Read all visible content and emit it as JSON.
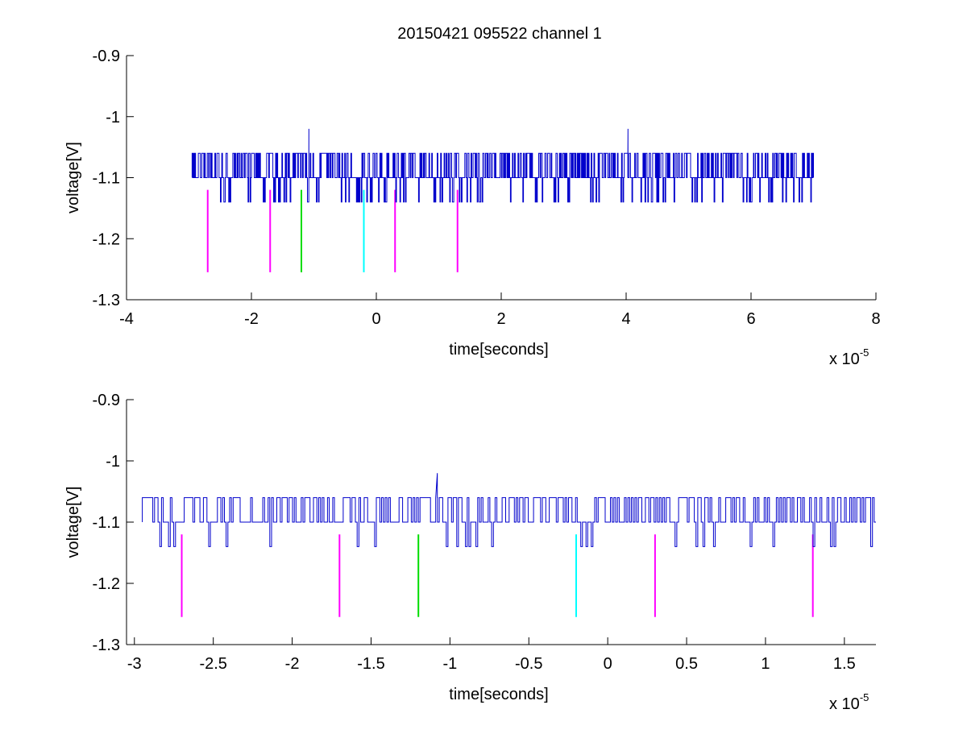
{
  "chart_data": [
    {
      "type": "line",
      "title": "20150421 095522 channel 1",
      "xlabel": "time[seconds]",
      "ylabel": "voltage[V]",
      "x_multiplier_base": "x 10",
      "x_multiplier_exp": "-5",
      "xlim": [
        -4,
        8
      ],
      "ylim": [
        -1.3,
        -0.9
      ],
      "xticks": [
        "-4",
        "-2",
        "0",
        "2",
        "4",
        "6",
        "8"
      ],
      "yticks": [
        "-0.9",
        "-1",
        "-1.1",
        "-1.2",
        "-1.3"
      ],
      "xtick_values": [
        -4,
        -2,
        0,
        2,
        4,
        6,
        8
      ],
      "ytick_values": [
        -0.9,
        -1.0,
        -1.1,
        -1.2,
        -1.3
      ],
      "grid": false,
      "signal": {
        "x_start": -2.95,
        "x_end": 7.0,
        "baseline": -1.1,
        "high": -1.06,
        "low": -1.14,
        "spikes": [
          {
            "x": -1.08,
            "y": -1.02
          },
          {
            "x": 4.03,
            "y": -1.02
          }
        ],
        "color": "#0000cc"
      },
      "markers": [
        {
          "x": -2.7,
          "y_top": -1.12,
          "y_bottom": -1.255,
          "color": "#ff00ff"
        },
        {
          "x": -1.7,
          "y_top": -1.12,
          "y_bottom": -1.255,
          "color": "#ff00ff"
        },
        {
          "x": -1.2,
          "y_top": -1.12,
          "y_bottom": -1.255,
          "color": "#00dd00"
        },
        {
          "x": -0.2,
          "y_top": -1.12,
          "y_bottom": -1.255,
          "color": "#00ffff"
        },
        {
          "x": 0.3,
          "y_top": -1.12,
          "y_bottom": -1.255,
          "color": "#ff00ff"
        },
        {
          "x": 1.3,
          "y_top": -1.12,
          "y_bottom": -1.255,
          "color": "#ff00ff"
        }
      ]
    },
    {
      "type": "line",
      "xlabel": "time[seconds]",
      "ylabel": "voltage[V]",
      "x_multiplier_base": "x 10",
      "x_multiplier_exp": "-5",
      "xlim": [
        -3.05,
        1.7
      ],
      "ylim": [
        -1.3,
        -0.9
      ],
      "xticks": [
        "-3",
        "-2.5",
        "-2",
        "-1.5",
        "-1",
        "-0.5",
        "0",
        "0.5",
        "1",
        "1.5"
      ],
      "yticks": [
        "-0.9",
        "-1",
        "-1.1",
        "-1.2",
        "-1.3"
      ],
      "xtick_values": [
        -3,
        -2.5,
        -2,
        -1.5,
        -1,
        -0.5,
        0,
        0.5,
        1,
        1.5
      ],
      "ytick_values": [
        -0.9,
        -1.0,
        -1.1,
        -1.2,
        -1.3
      ],
      "grid": false,
      "signal": {
        "x_start": -2.95,
        "x_end": 1.7,
        "baseline": -1.1,
        "high": -1.06,
        "low": -1.14,
        "spikes": [
          {
            "x": -1.08,
            "y": -1.02
          }
        ],
        "color": "#0000cc"
      },
      "markers": [
        {
          "x": -2.7,
          "y_top": -1.12,
          "y_bottom": -1.255,
          "color": "#ff00ff"
        },
        {
          "x": -1.7,
          "y_top": -1.12,
          "y_bottom": -1.255,
          "color": "#ff00ff"
        },
        {
          "x": -1.2,
          "y_top": -1.12,
          "y_bottom": -1.255,
          "color": "#00dd00"
        },
        {
          "x": -0.2,
          "y_top": -1.12,
          "y_bottom": -1.255,
          "color": "#00ffff"
        },
        {
          "x": 0.3,
          "y_top": -1.12,
          "y_bottom": -1.255,
          "color": "#ff00ff"
        },
        {
          "x": 1.3,
          "y_top": -1.12,
          "y_bottom": -1.255,
          "color": "#ff00ff"
        }
      ]
    }
  ]
}
